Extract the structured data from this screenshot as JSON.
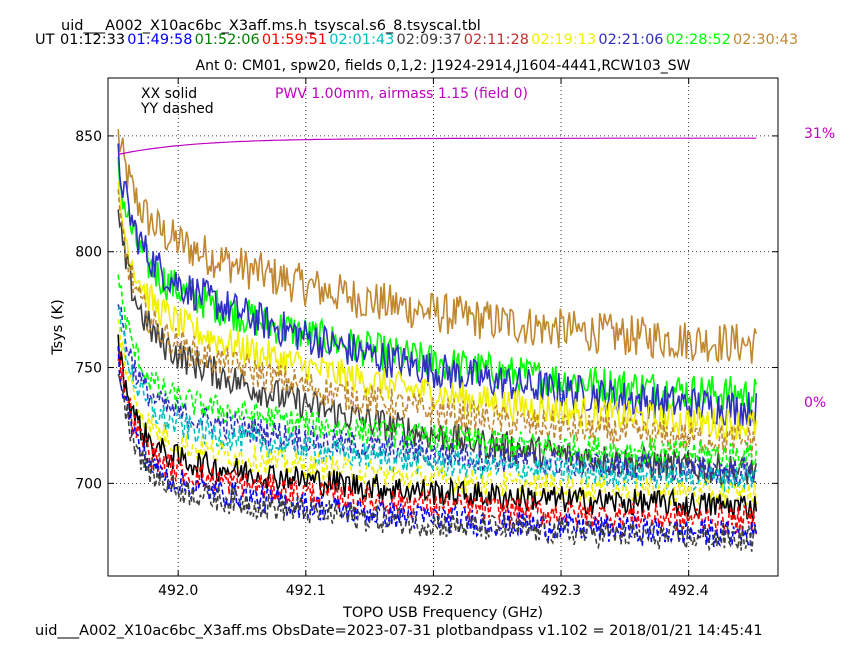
{
  "chart_data": {
    "type": "line",
    "title": "uid___A002_X10ac6bc_X3aff.ms.h_tsyscal.s6_8.tsyscal.tbl",
    "subtitle": "Ant 0: CM01,  spw20,  fields 0,1,2: J1924-2914,J1604-4441,RCW103_SW",
    "ut_label": "UT",
    "times": [
      {
        "label": "01:12:33",
        "color": "#000000"
      },
      {
        "label": "01:49:58",
        "color": "#0000ff"
      },
      {
        "label": "01:52:06",
        "color": "#008000"
      },
      {
        "label": "01:59:51",
        "color": "#ff0000"
      },
      {
        "label": "02:01:43",
        "color": "#00bfbf"
      },
      {
        "label": "02:09:37",
        "color": "#404040"
      },
      {
        "label": "02:11:28",
        "color": "#c03030"
      },
      {
        "label": "02:19:13",
        "color": "#f0f000"
      },
      {
        "label": "02:21:06",
        "color": "#3030c0"
      },
      {
        "label": "02:28:52",
        "color": "#00ff00"
      },
      {
        "label": "02:30:43",
        "color": "#c08830"
      }
    ],
    "legend": {
      "solid": "XX solid",
      "dashed": "YY dashed",
      "position": "top-left"
    },
    "pwv_label": "PWV 1.00mm, airmass 1.15 (field 0)",
    "pwv_color": "#c000c0",
    "xlabel": "TOPO USB Frequency (GHz)",
    "ylabel": "Tsys (K)",
    "xlim": [
      491.945,
      492.47
    ],
    "ylim": [
      660,
      875
    ],
    "xticks": [
      492.0,
      492.1,
      492.2,
      492.3,
      492.4
    ],
    "xtick_labels": [
      "492.0",
      "492.1",
      "492.2",
      "492.3",
      "492.4"
    ],
    "yticks": [
      700,
      750,
      800,
      850
    ],
    "ytick_labels": [
      "700",
      "750",
      "800",
      "850"
    ],
    "grid": true,
    "right_axis": {
      "top_label": "31%",
      "bottom_label": "0%",
      "color": "#c000c0"
    },
    "freq_range": [
      491.953,
      492.453
    ],
    "transmission_curve": {
      "start": 842,
      "end": 849
    },
    "series": [
      {
        "color": "#c08830",
        "dash": false,
        "start": 850,
        "knee": 815,
        "end": 760,
        "noise": 9
      },
      {
        "color": "#00ff00",
        "dash": false,
        "start": 835,
        "knee": 795,
        "end": 738,
        "noise": 8
      },
      {
        "color": "#3030c0",
        "dash": false,
        "start": 840,
        "knee": 800,
        "end": 732,
        "noise": 8
      },
      {
        "color": "#f0f000",
        "dash": false,
        "start": 825,
        "knee": 780,
        "end": 725,
        "noise": 7
      },
      {
        "color": "#404040",
        "dash": false,
        "start": 815,
        "knee": 768,
        "end": 705,
        "noise": 7
      },
      {
        "color": "#c08830",
        "dash": true,
        "start": 820,
        "knee": 770,
        "end": 718,
        "noise": 7
      },
      {
        "color": "#00ff00",
        "dash": true,
        "start": 790,
        "knee": 742,
        "end": 712,
        "noise": 6
      },
      {
        "color": "#3030c0",
        "dash": true,
        "start": 780,
        "knee": 736,
        "end": 705,
        "noise": 6
      },
      {
        "color": "#00bfbf",
        "dash": true,
        "start": 775,
        "knee": 730,
        "end": 702,
        "noise": 6
      },
      {
        "color": "#f0f000",
        "dash": true,
        "start": 770,
        "knee": 722,
        "end": 695,
        "noise": 6
      },
      {
        "color": "#000000",
        "dash": false,
        "start": 760,
        "knee": 715,
        "end": 690,
        "noise": 6
      },
      {
        "color": "#ff0000",
        "dash": true,
        "start": 758,
        "knee": 710,
        "end": 684,
        "noise": 6
      },
      {
        "color": "#0000ff",
        "dash": true,
        "start": 755,
        "knee": 705,
        "end": 678,
        "noise": 6
      },
      {
        "color": "#404040",
        "dash": true,
        "start": 752,
        "knee": 702,
        "end": 676,
        "noise": 6
      }
    ]
  },
  "footer": "uid___A002_X10ac6bc_X3aff.ms  ObsDate=2023-07-31   plotbandpass v1.102 = 2018/01/21 14:45:41"
}
